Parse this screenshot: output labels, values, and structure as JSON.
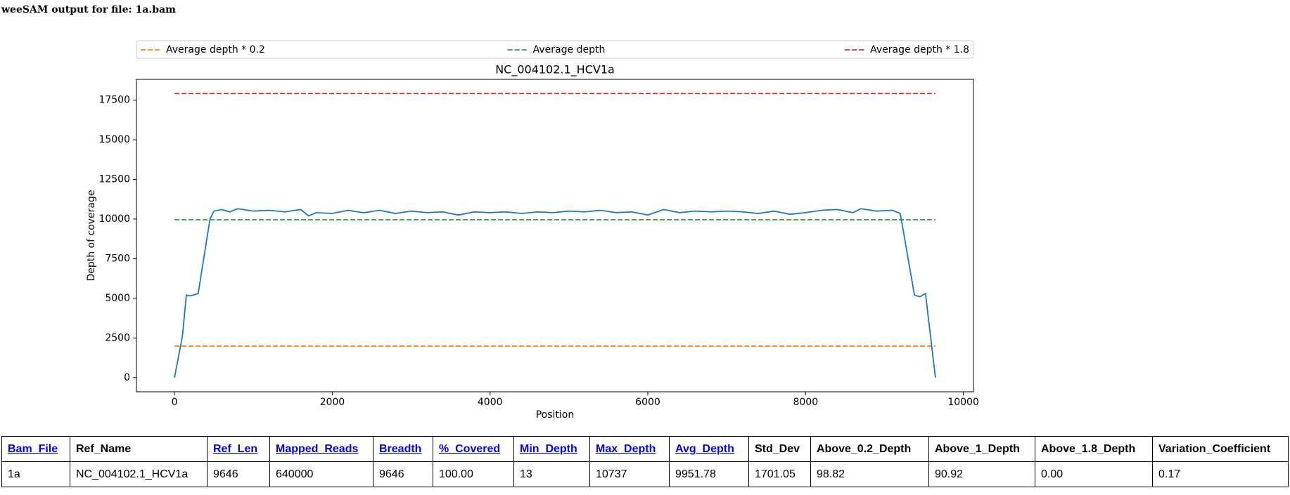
{
  "page_title": "weeSAM output for file: 1a.bam",
  "chart_data": {
    "type": "line",
    "title": "NC_004102.1_HCV1a",
    "x_label": "Position",
    "y_label": "Depth of coverage",
    "legend": "top",
    "grid": false,
    "xlim": [
      -482.3,
      10128.3
    ],
    "xticks": [
      0,
      2000,
      4000,
      6000,
      8000,
      10000
    ],
    "ylim": [
      -895.7,
      18808.9
    ],
    "yticks": [
      0,
      2500,
      5000,
      7500,
      10000,
      12500,
      15000,
      17500
    ],
    "series": [
      {
        "name": "Average depth * 0.2",
        "color": "#ff7f0e",
        "dashed": true,
        "x": [
          0,
          9646
        ],
        "values": [
          1990.36,
          1990.36
        ]
      },
      {
        "name": "Average depth",
        "color": "#2ca02c",
        "dashed": true,
        "x": [
          0,
          9646
        ],
        "values": [
          9951.78,
          9951.78
        ]
      },
      {
        "name": "Average depth * 1.8",
        "color": "#d62728",
        "dashed": true,
        "x": [
          0,
          9646
        ],
        "values": [
          17913.2,
          17913.2
        ]
      },
      {
        "color": "#1f77b4",
        "dashed": false,
        "x": [
          0,
          100,
          150,
          200,
          300,
          450,
          500,
          600,
          700,
          800,
          1000,
          1200,
          1400,
          1600,
          1700,
          1800,
          2000,
          2200,
          2400,
          2600,
          2800,
          3000,
          3200,
          3400,
          3600,
          3800,
          4000,
          4200,
          4400,
          4600,
          4800,
          5000,
          5200,
          5400,
          5600,
          5800,
          6000,
          6200,
          6400,
          6600,
          6800,
          7000,
          7200,
          7400,
          7600,
          7800,
          8000,
          8200,
          8400,
          8600,
          8700,
          8900,
          9100,
          9200,
          9300,
          9380,
          9450,
          9520,
          9646
        ],
        "values": [
          0,
          2600,
          5200,
          5150,
          5300,
          10000,
          10500,
          10600,
          10450,
          10650,
          10500,
          10550,
          10450,
          10600,
          10200,
          10400,
          10350,
          10550,
          10400,
          10550,
          10350,
          10500,
          10400,
          10450,
          10250,
          10450,
          10400,
          10450,
          10350,
          10450,
          10400,
          10500,
          10450,
          10550,
          10400,
          10450,
          10250,
          10600,
          10400,
          10500,
          10450,
          10500,
          10450,
          10350,
          10500,
          10300,
          10400,
          10550,
          10600,
          10400,
          10650,
          10500,
          10550,
          10350,
          7500,
          5200,
          5100,
          5300,
          0
        ]
      }
    ]
  },
  "table": {
    "header": [
      "Bam_File",
      "Ref_Name",
      "Ref_Len",
      "Mapped_Reads",
      "Breadth",
      "%_Covered",
      "Min_Depth",
      "Max_Depth",
      "Avg_Depth",
      "Std_Dev",
      "Above_0.2_Depth",
      "Above_1_Depth",
      "Above_1.8_Depth",
      "Variation_Coefficient"
    ],
    "rows": [
      [
        "1a",
        "NC_004102.1_HCV1a",
        "9646",
        "640000",
        "9646",
        "100.00",
        "13",
        "10737",
        "9951.78",
        "1701.05",
        "98.82",
        "90.92",
        "0.00",
        "0.17"
      ]
    ]
  }
}
